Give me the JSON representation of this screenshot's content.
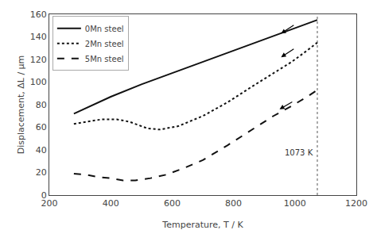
{
  "chart_data": {
    "type": "line",
    "xlabel": "Temperature, T / K",
    "ylabel": "Displacement, ΔL / μm",
    "xlim": [
      200,
      1200
    ],
    "ylim": [
      0,
      160
    ],
    "xticks": [
      200,
      400,
      600,
      800,
      1000,
      1200
    ],
    "yticks": [
      0,
      20,
      40,
      60,
      80,
      100,
      120,
      140,
      160
    ],
    "grid": false,
    "legend": "upper left",
    "series": [
      {
        "name": "0Mn steel",
        "line_style": "solid",
        "color": "#111111",
        "x": [
          280,
          400,
          500,
          600,
          700,
          800,
          900,
          1000,
          1073
        ],
        "values": [
          72,
          87,
          98,
          108,
          118,
          128,
          138,
          148,
          155
        ]
      },
      {
        "name": "2Mn steel",
        "line_style": "dotted",
        "color": "#111111",
        "x": [
          280,
          320,
          370,
          420,
          460,
          490,
          520,
          560,
          620,
          700,
          780,
          860,
          930,
          990,
          1040,
          1073
        ],
        "values": [
          63,
          65,
          67,
          67,
          65,
          62,
          59,
          58,
          61,
          70,
          82,
          96,
          108,
          118,
          128,
          135
        ]
      },
      {
        "name": "5Mn steel",
        "line_style": "dashed",
        "color": "#111111",
        "x": [
          280,
          320,
          360,
          400,
          440,
          480,
          530,
          580,
          640,
          700,
          780,
          860,
          930,
          990,
          1040,
          1073
        ],
        "values": [
          19,
          18,
          16,
          15,
          13,
          13,
          15,
          18,
          24,
          31,
          44,
          58,
          70,
          79,
          87,
          93
        ]
      }
    ],
    "vline": {
      "x": 1073,
      "label": "1073 K",
      "color": "#555555"
    },
    "arrows": [
      {
        "x_tail": 1000,
        "y_tail": 151,
        "x_head": 955,
        "y_head": 143
      },
      {
        "x_tail": 1000,
        "y_tail": 130,
        "x_head": 955,
        "y_head": 122
      },
      {
        "x_tail": 995,
        "y_tail": 83,
        "x_head": 950,
        "y_head": 76
      }
    ]
  }
}
